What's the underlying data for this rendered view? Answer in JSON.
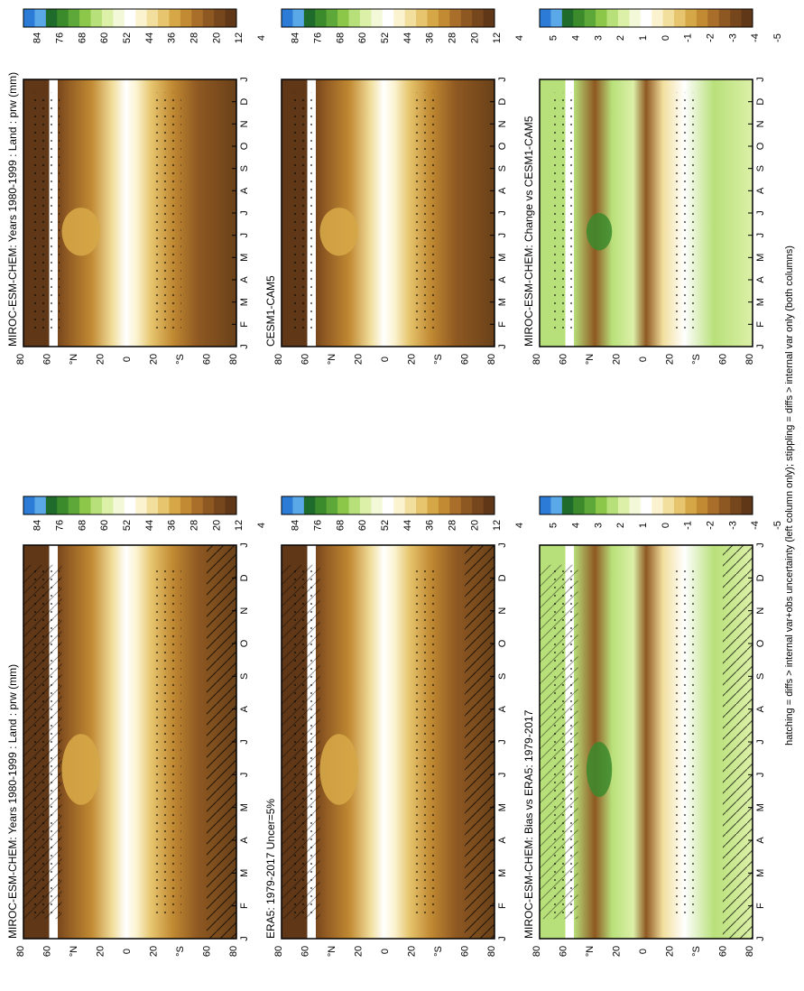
{
  "footnote": "hatching = diffs > internal var+obs uncertainty (left column only); stippling = diffs > internal var only (both columns)",
  "months": [
    "J",
    "F",
    "M",
    "A",
    "M",
    "J",
    "J",
    "A",
    "S",
    "O",
    "N",
    "D",
    "J"
  ],
  "lat_labels": [
    "80",
    "60",
    "°N",
    "20",
    "0",
    "20",
    "°S",
    "60",
    "80"
  ],
  "colorbars": {
    "abs": {
      "labels": [
        "84",
        "76",
        "68",
        "60",
        "52",
        "44",
        "36",
        "28",
        "20",
        "12",
        "4"
      ],
      "colors": [
        "#2c7bd6",
        "#5aa8e8",
        "#1f6b2c",
        "#3b8a2c",
        "#5ea83a",
        "#8cc74a",
        "#b8e07a",
        "#dcf0a8",
        "#f3f8d8",
        "#ffffff",
        "#fbf3d0",
        "#f2df9e",
        "#e6c56e",
        "#d6a747",
        "#c18a33",
        "#a86e2a",
        "#8e5822",
        "#76461c",
        "#603818"
      ]
    },
    "diff": {
      "labels": [
        "5",
        "4",
        "3",
        "2",
        "1",
        "0",
        "-1",
        "-2",
        "-3",
        "-4",
        "-5"
      ],
      "colors": [
        "#2c7bd6",
        "#5aa8e8",
        "#1f6b2c",
        "#3b8a2c",
        "#5ea83a",
        "#8cc74a",
        "#b8e07a",
        "#dcf0a8",
        "#f3f8d8",
        "#ffffff",
        "#fbf3d0",
        "#f2df9e",
        "#e6c56e",
        "#d6a747",
        "#c18a33",
        "#a86e2a",
        "#8e5822",
        "#76461c",
        "#603818"
      ]
    }
  },
  "chart_data": [
    {
      "type": "heatmap",
      "title": "MIROC-ESM-CHEM: Years 1980-1999 : Land : prw (mm)",
      "x": "months J–J",
      "y": "latitude 80°N–80°S",
      "colorbar": "abs",
      "values_range": [
        4,
        84
      ]
    },
    {
      "type": "heatmap",
      "title": "MIROC-ESM-CHEM: Years 1980-1999 : Land : prw (mm)",
      "x": "months J–J",
      "y": "latitude 80°N–80°S",
      "colorbar": "abs",
      "values_range": [
        4,
        84
      ]
    },
    {
      "type": "heatmap",
      "title": "ERA5: 1979-2017 Uncer=5%",
      "x": "months J–J",
      "y": "latitude 80°N–80°S",
      "colorbar": "abs",
      "values_range": [
        4,
        84
      ]
    },
    {
      "type": "heatmap",
      "title": "CESM1-CAM5",
      "x": "months J–J",
      "y": "latitude 80°N–80°S",
      "colorbar": "abs",
      "values_range": [
        4,
        84
      ]
    },
    {
      "type": "heatmap",
      "title": "MIROC-ESM-CHEM: Bias vs ERA5: 1979-2017",
      "x": "months J–J",
      "y": "latitude 80°N–80°S",
      "colorbar": "diff",
      "values_range": [
        -5,
        5
      ]
    },
    {
      "type": "heatmap",
      "title": "MIROC-ESM-CHEM: Change vs CESM1-CAM5",
      "x": "months J–J",
      "y": "latitude 80°N–80°S",
      "colorbar": "diff",
      "values_range": [
        -5,
        5
      ]
    }
  ]
}
